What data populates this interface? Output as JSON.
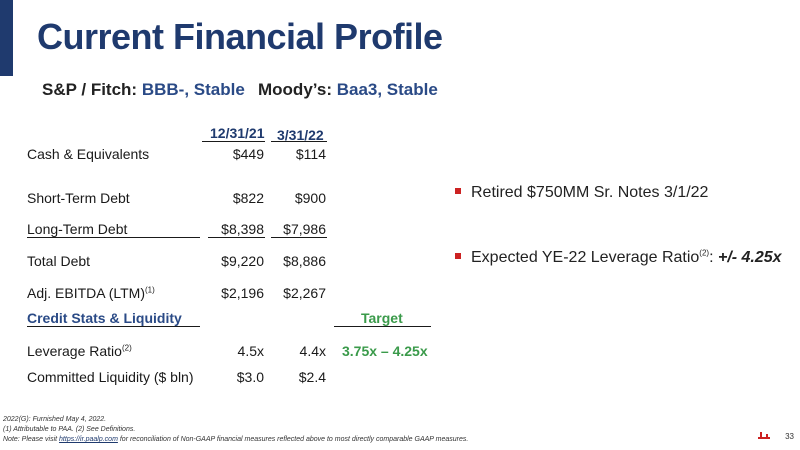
{
  "title": "Current Financial Profile",
  "ratings": {
    "sp_label": "S&P / Fitch:",
    "sp_value": "BBB-, Stable",
    "moodys_label": "Moody’s:",
    "moodys_value": "Baa3, Stable"
  },
  "table": {
    "col1_header": "12/31/21",
    "col2_header": "3/31/22",
    "rows": [
      {
        "label": "Cash & Equivalents",
        "v1": "$449",
        "v2": "$114"
      },
      {
        "label": "Short-Term Debt",
        "v1": "$822",
        "v2": "$900"
      },
      {
        "label": "Long-Term Debt",
        "v1": "$8,398",
        "v2": "$7,986"
      },
      {
        "label": "Total Debt",
        "v1": "$9,220",
        "v2": "$8,886"
      },
      {
        "label": "Adj. EBITDA (LTM)",
        "sup": "(1)",
        "v1": "$2,196",
        "v2": "$2,267"
      }
    ],
    "section_label": "Credit Stats & Liquidity",
    "target_header": "Target",
    "stats": [
      {
        "label": "Leverage Ratio",
        "sup": "(2)",
        "v1": "4.5x",
        "v2": "4.4x",
        "target": "3.75x – 4.25x"
      },
      {
        "label": "Committed Liquidity ($ bln)",
        "v1": "$3.0",
        "v2": "$2.4"
      }
    ]
  },
  "bullets": [
    {
      "text": "Retired $750MM Sr. Notes 3/1/22"
    },
    {
      "text": "Expected YE-22 Leverage Ratio",
      "sup": "(2)",
      "suffix": ": ",
      "emphasis": "+/- 4.25x"
    }
  ],
  "footer": {
    "line1": "2022(G): Furnished May 4, 2022.",
    "line2": "(1) Attributable to PAA. (2) See Definitions.",
    "line3_prefix": "Note: Please visit ",
    "line3_link": "https://ir.paalp.com",
    "line3_suffix": " for reconciliation of Non-GAAP financial measures reflected above to most directly comparable GAAP measures."
  },
  "page_number": "33",
  "colors": {
    "brand_navy": "#1f3a6e",
    "accent_blue": "#2a4a86",
    "target_green": "#3a9a4a",
    "bullet_red": "#cc2222"
  }
}
